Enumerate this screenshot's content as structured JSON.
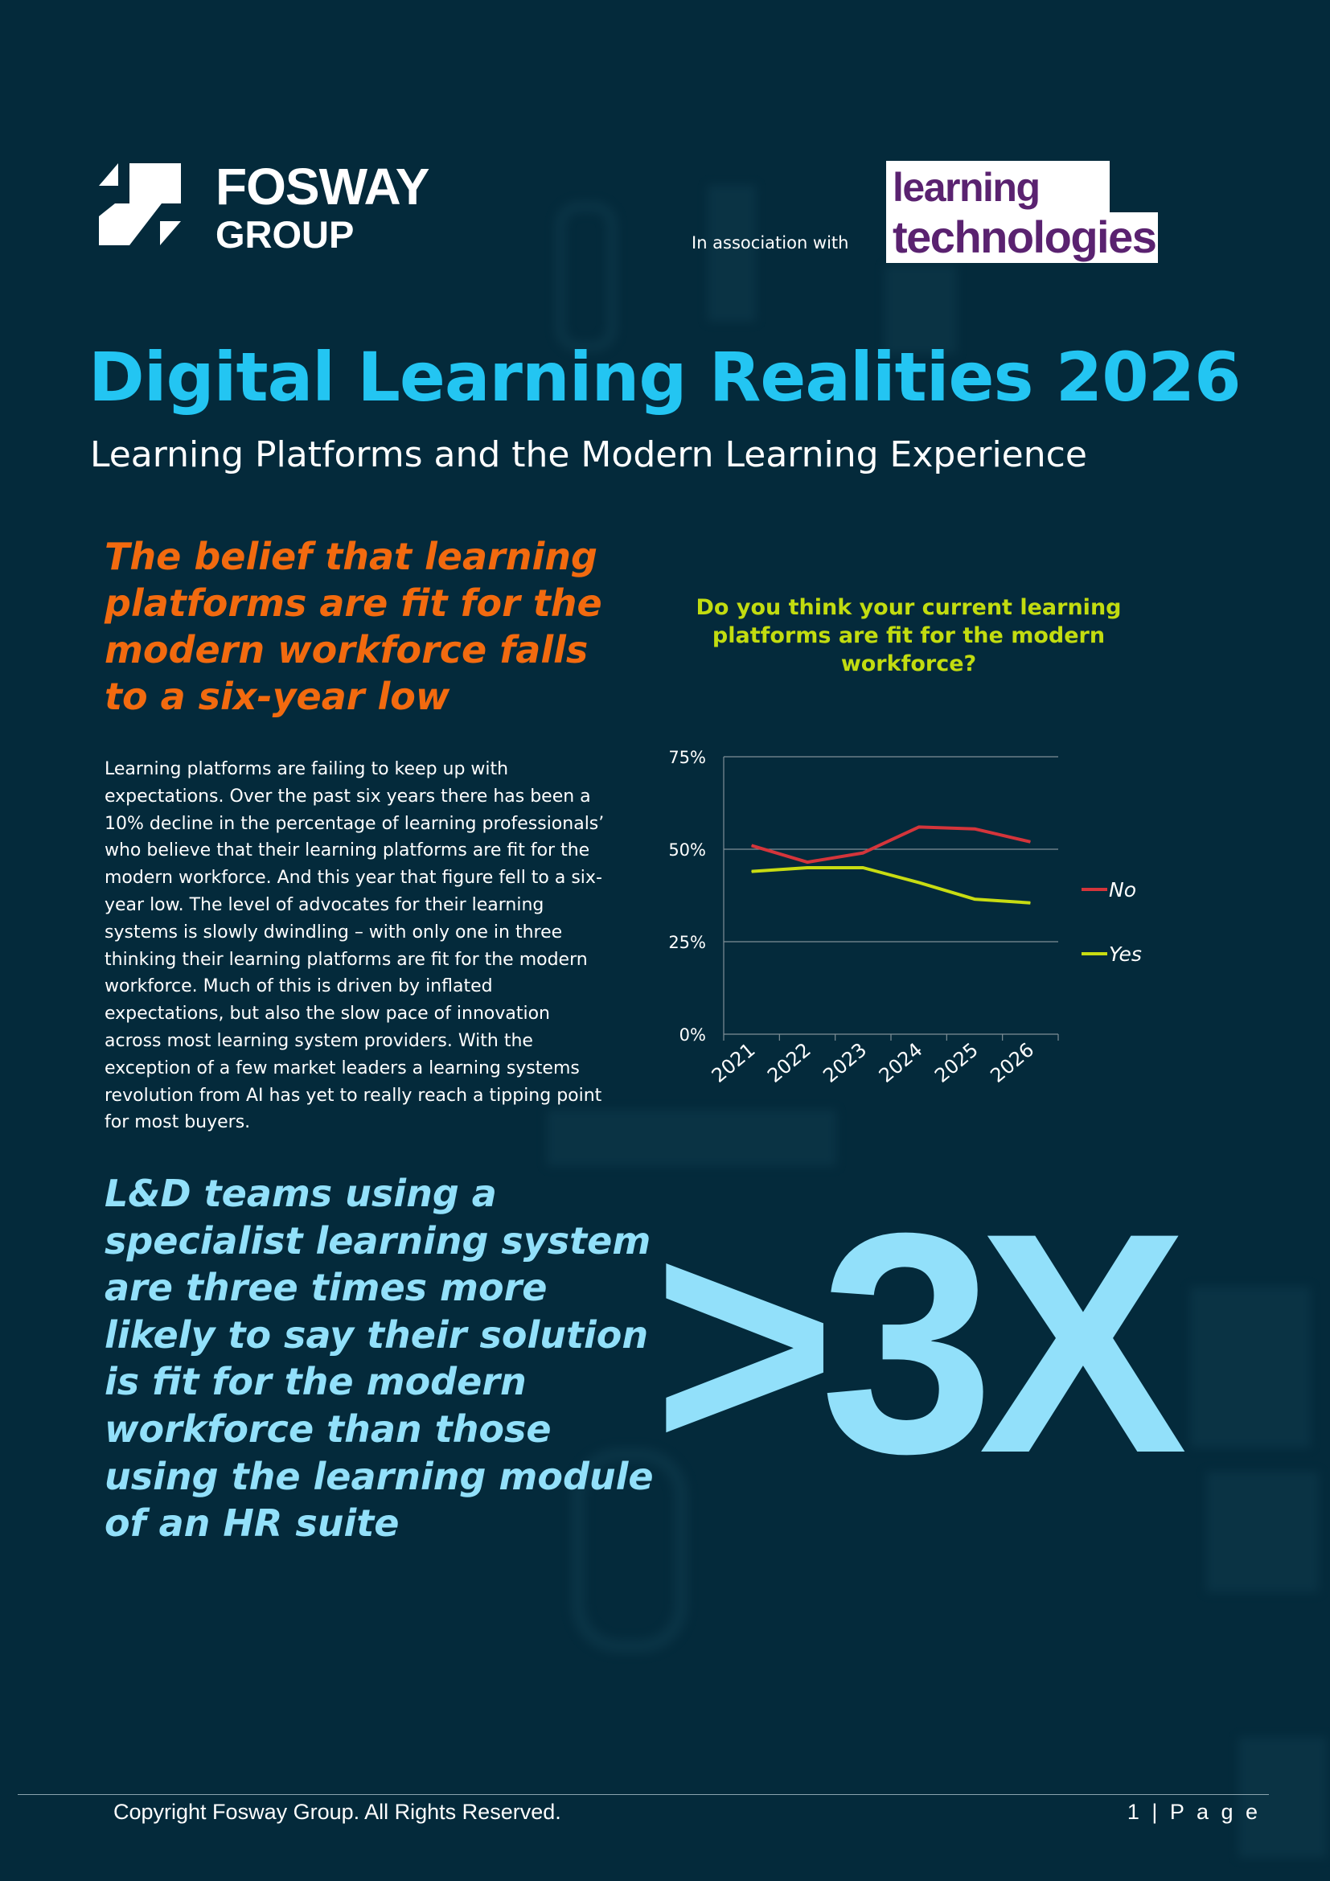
{
  "header": {
    "brand_line1": "FOSWAY",
    "brand_line2": "GROUP",
    "association_label": "In association with",
    "partner_line1": "learning",
    "partner_line2": "technologies",
    "partner_color": "#5a2270"
  },
  "title": "Digital Learning Realities 2026",
  "subtitle": "Learning Platforms and the Modern Learning Experience",
  "headline": "The belief that learning platforms are fit for the modern workforce falls to a six-year low",
  "body": "Learning platforms are failing to keep up with expectations. Over the past six years there has been a 10% decline in the percentage of learning professionals’ who believe that their learning platforms are fit for the modern workforce. And this year that figure fell to a six-year low. The level of advocates for their learning systems is slowly dwindling – with only one in three thinking their learning platforms are fit for the modern workforce. Much of this is driven by inflated expectations, but also the slow pace of innovation across most learning system providers. With the exception of a few market leaders a learning systems revolution from AI has yet to really reach a tipping point for most buyers.",
  "callout": "L&D teams using a specialist learning system are three times more likely to say their solution is fit for the modern workforce than those using the learning module of an HR suite",
  "big_stat": ">3X",
  "colors": {
    "title_blue": "#23c5f2",
    "headline_orange": "#f26a0f",
    "callout_blue": "#92e0fa",
    "background": "#042a3b"
  },
  "chart_data": {
    "type": "line",
    "title": "Do you think your current learning platforms are fit for the modern workforce?",
    "categories": [
      "2021",
      "2022",
      "2023",
      "2024",
      "2025",
      "2026"
    ],
    "y_ticks": [
      "0%",
      "25%",
      "50%",
      "75%"
    ],
    "ylim": [
      0,
      75
    ],
    "grid": true,
    "legend_position": "right",
    "series": [
      {
        "name": "No",
        "values": [
          51,
          46.5,
          49,
          56,
          55.5,
          52
        ],
        "color": "#d4353b"
      },
      {
        "name": "Yes",
        "values": [
          44,
          45,
          45,
          41,
          36.5,
          35.5
        ],
        "color": "#c8dc12"
      }
    ]
  },
  "footer": {
    "copyright": "Copyright Fosway Group. All Rights Reserved.",
    "page": "1 | P a g e"
  }
}
